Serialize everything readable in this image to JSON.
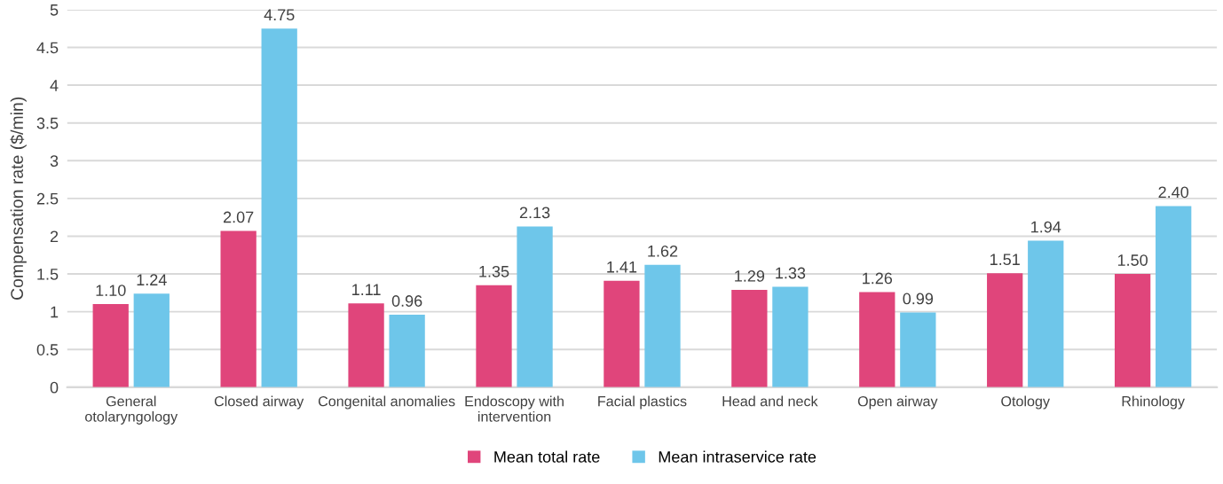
{
  "chart_data": {
    "type": "bar",
    "ylabel": "Compensation rate ($/min)",
    "categories": [
      "General\notolaryngology",
      "Closed airway",
      "Congenital anomalies",
      "Endoscopy with\nintervention",
      "Facial plastics",
      "Head and neck",
      "Open airway",
      "Otology",
      "Rhinology"
    ],
    "series": [
      {
        "name": "Mean total rate",
        "color": "#e0457b",
        "values": [
          1.1,
          2.07,
          1.11,
          1.35,
          1.41,
          1.29,
          1.26,
          1.51,
          1.5
        ],
        "value_labels": [
          "1.10",
          "2.07",
          "1.11",
          "1.35",
          "1.41",
          "1.29",
          "1.26",
          "1.51",
          "1.50"
        ]
      },
      {
        "name": "Mean intraservice rate",
        "color": "#6ec6ea",
        "values": [
          1.24,
          4.75,
          0.96,
          2.13,
          1.62,
          1.33,
          0.99,
          1.94,
          2.4
        ],
        "value_labels": [
          "1.24",
          "4.75",
          "0.96",
          "2.13",
          "1.62",
          "1.33",
          "0.99",
          "1.94",
          "2.40"
        ]
      }
    ],
    "ylim": [
      0,
      5
    ],
    "yticks": [
      0,
      0.5,
      1,
      1.5,
      2,
      2.5,
      3,
      3.5,
      4,
      4.5,
      5
    ],
    "grid": "y",
    "legend": "bottom"
  }
}
